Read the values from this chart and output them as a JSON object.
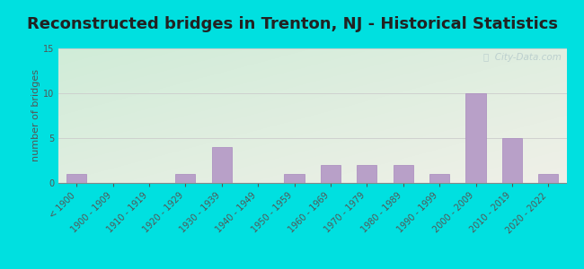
{
  "title": "Reconstructed bridges in Trenton, NJ - Historical Statistics",
  "ylabel": "number of bridges",
  "categories": [
    "< 1900",
    "1900 - 1909",
    "1910 - 1919",
    "1920 - 1929",
    "1930 - 1939",
    "1940 - 1949",
    "1950 - 1959",
    "1960 - 1969",
    "1970 - 1979",
    "1980 - 1989",
    "1990 - 1999",
    "2000 - 2009",
    "2010 - 2019",
    "2020 - 2022"
  ],
  "values": [
    1,
    0,
    0,
    1,
    4,
    0,
    1,
    2,
    2,
    2,
    1,
    10,
    5,
    1
  ],
  "bar_color": "#b8a0c8",
  "bar_edge_color": "#a888be",
  "ylim": [
    0,
    15
  ],
  "yticks": [
    0,
    5,
    10,
    15
  ],
  "bg_outer": "#00e0e0",
  "bg_plot_tl": "#d0ecd8",
  "bg_plot_br": "#f0f0e8",
  "grid_color": "#cccccc",
  "title_fontsize": 13,
  "label_fontsize": 8,
  "tick_fontsize": 7,
  "watermark_text": "ⓘ  City-Data.com",
  "watermark_color": "#b8cccc",
  "title_color": "#222222",
  "axis_label_color": "#555555",
  "tick_color": "#555555"
}
